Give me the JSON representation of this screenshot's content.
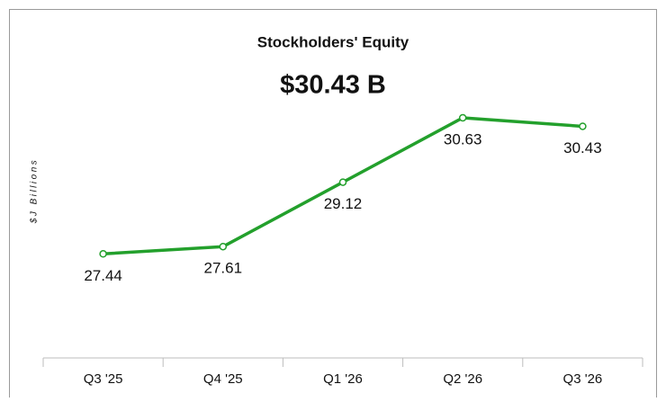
{
  "chart_data": {
    "type": "line",
    "title": "Stockholders' Equity",
    "subtitle": "$30.43 B",
    "y_label": "$J Billions",
    "categories": [
      "Q3 '25",
      "Q4 '25",
      "Q1 '26",
      "Q2 '26",
      "Q3 '26"
    ],
    "values": [
      27.44,
      27.61,
      29.12,
      30.63,
      30.43
    ],
    "color": "#23a02c",
    "ylim": [
      25,
      32
    ],
    "grid": false
  }
}
